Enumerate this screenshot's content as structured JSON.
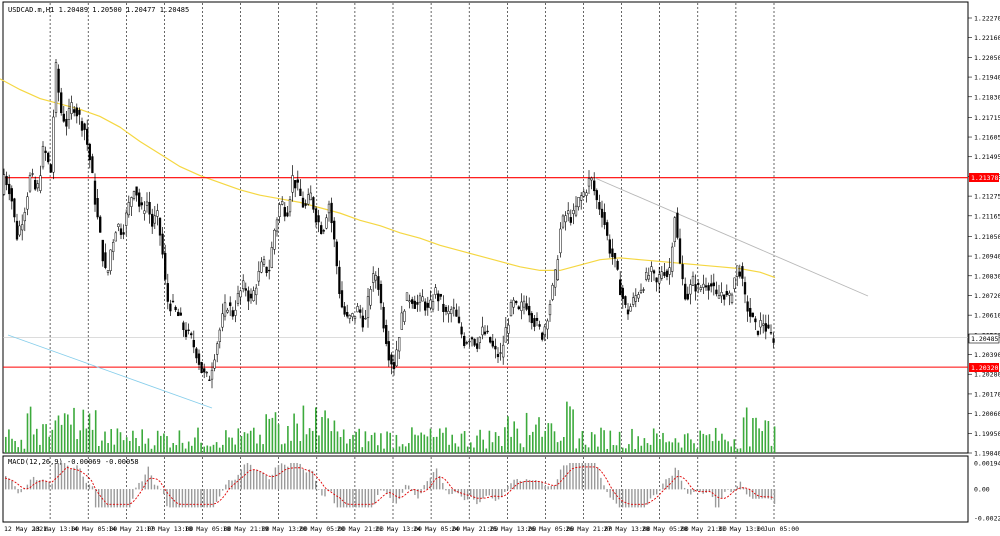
{
  "header": {
    "symbol_info": "USDCAD.m,H1  1.20489 1.20500 1.20477 1.20485"
  },
  "macd_header": "MACD(12,26,9) -0.00069 -0.00058",
  "colors": {
    "background": "#ffffff",
    "candle": "#000000",
    "grid": "#000000",
    "ma": "#f5d742",
    "resistance": "#ff0000",
    "support": "#ff0000",
    "trend_blue": "#87ceeb",
    "trend_gray": "#b8b8b8",
    "volume": "#3caa3c",
    "macd_hist": "#9a9a9a",
    "macd_signal": "#e00000",
    "price_box": "#ff0000"
  },
  "chart_data": {
    "type": "candlestick",
    "instrument": "USDCAD.m",
    "timeframe": "H1",
    "ohlc_current": {
      "open": 1.20489,
      "high": 1.205,
      "low": 1.20477,
      "close": 1.20485
    },
    "price_axis": {
      "ylim": [
        1.1984,
        1.2227
      ],
      "ticks": [
        "1.22270",
        "1.22160",
        "1.22050",
        "1.21940",
        "1.21830",
        "1.21715",
        "1.21605",
        "1.21495",
        "1.21385",
        "1.21275",
        "1.21165",
        "1.21050",
        "1.20940",
        "1.20830",
        "1.20720",
        "1.20610",
        "1.20500",
        "1.20390",
        "1.20280",
        "1.20170",
        "1.20060",
        "1.19950",
        "1.19840"
      ]
    },
    "time_axis": {
      "labels": [
        "12 May 2021",
        "13 May 13:00",
        "14 May 05:00",
        "14 May 21:00",
        "17 May 13:00",
        "18 May 05:00",
        "18 May 21:00",
        "19 May 13:00",
        "20 May 05:00",
        "20 May 21:00",
        "21 May 13:00",
        "24 May 05:00",
        "24 May 21:00",
        "25 May 13:00",
        "26 May 05:00",
        "26 May 21:00",
        "27 May 13:00",
        "28 May 05:00",
        "28 May 21:00",
        "31 May 13:00",
        "1 Jun 05:00"
      ]
    },
    "levels": {
      "resistance": {
        "value": 1.21378,
        "label": "1.21378"
      },
      "support": {
        "value": 1.2032,
        "label": "1.20320"
      },
      "current": {
        "value": 1.20485,
        "label": "1.20485"
      }
    },
    "ma_curve": [
      [
        0,
        1.2193
      ],
      [
        20,
        1.2187
      ],
      [
        40,
        1.2182
      ],
      [
        60,
        1.2179
      ],
      [
        80,
        1.2176
      ],
      [
        100,
        1.2172
      ],
      [
        120,
        1.2166
      ],
      [
        140,
        1.2158
      ],
      [
        160,
        1.2151
      ],
      [
        180,
        1.2144
      ],
      [
        200,
        1.2139
      ],
      [
        220,
        1.2135
      ],
      [
        240,
        1.2131
      ],
      [
        260,
        1.2128
      ],
      [
        280,
        1.2126
      ],
      [
        300,
        1.2124
      ],
      [
        320,
        1.2121
      ],
      [
        340,
        1.2118
      ],
      [
        360,
        1.2114
      ],
      [
        380,
        1.2111
      ],
      [
        400,
        1.2107
      ],
      [
        420,
        1.2104
      ],
      [
        440,
        1.21
      ],
      [
        460,
        1.2097
      ],
      [
        480,
        1.2094
      ],
      [
        500,
        1.2091
      ],
      [
        520,
        1.2088
      ],
      [
        540,
        1.2086
      ],
      [
        560,
        1.2086
      ],
      [
        580,
        1.2089
      ],
      [
        600,
        1.2092
      ],
      [
        620,
        1.2093
      ],
      [
        640,
        1.2092
      ],
      [
        660,
        1.2091
      ],
      [
        680,
        1.209
      ],
      [
        700,
        1.2089
      ],
      [
        720,
        1.2088
      ],
      [
        740,
        1.2087
      ],
      [
        760,
        1.2085
      ],
      [
        775,
        1.2082
      ]
    ],
    "price_path": [
      [
        0,
        1.2115
      ],
      [
        5,
        1.214
      ],
      [
        12,
        1.213
      ],
      [
        18,
        1.2105
      ],
      [
        25,
        1.2118
      ],
      [
        32,
        1.214
      ],
      [
        38,
        1.2128
      ],
      [
        45,
        1.2155
      ],
      [
        52,
        1.214
      ],
      [
        57,
        1.22
      ],
      [
        62,
        1.2175
      ],
      [
        68,
        1.2168
      ],
      [
        74,
        1.218
      ],
      [
        80,
        1.2172
      ],
      [
        86,
        1.2165
      ],
      [
        92,
        1.2145
      ],
      [
        98,
        1.2118
      ],
      [
        104,
        1.2095
      ],
      [
        108,
        1.208
      ],
      [
        112,
        1.2098
      ],
      [
        118,
        1.2112
      ],
      [
        124,
        1.2108
      ],
      [
        130,
        1.2122
      ],
      [
        136,
        1.2135
      ],
      [
        142,
        1.2118
      ],
      [
        148,
        1.2125
      ],
      [
        154,
        1.211
      ],
      [
        158,
        1.2118
      ],
      [
        163,
        1.21
      ],
      [
        168,
        1.207
      ],
      [
        174,
        1.2065
      ],
      [
        180,
        1.206
      ],
      [
        186,
        1.2052
      ],
      [
        192,
        1.2048
      ],
      [
        198,
        1.204
      ],
      [
        204,
        1.2028
      ],
      [
        210,
        1.2025
      ],
      [
        216,
        1.204
      ],
      [
        222,
        1.2055
      ],
      [
        228,
        1.2068
      ],
      [
        234,
        1.2062
      ],
      [
        240,
        1.2072
      ],
      [
        246,
        1.2078
      ],
      [
        252,
        1.2068
      ],
      [
        258,
        1.208
      ],
      [
        264,
        1.209
      ],
      [
        270,
        1.2085
      ],
      [
        276,
        1.211
      ],
      [
        282,
        1.2125
      ],
      [
        288,
        1.2118
      ],
      [
        294,
        1.2138
      ],
      [
        300,
        1.213
      ],
      [
        306,
        1.212
      ],
      [
        312,
        1.2128
      ],
      [
        318,
        1.2115
      ],
      [
        324,
        1.2108
      ],
      [
        330,
        1.2125
      ],
      [
        336,
        1.21
      ],
      [
        342,
        1.2068
      ],
      [
        348,
        1.2058
      ],
      [
        354,
        1.206
      ],
      [
        360,
        1.2065
      ],
      [
        366,
        1.2055
      ],
      [
        372,
        1.2078
      ],
      [
        378,
        1.2085
      ],
      [
        384,
        1.206
      ],
      [
        390,
        1.204
      ],
      [
        395,
        1.2032
      ],
      [
        400,
        1.205
      ],
      [
        406,
        1.2068
      ],
      [
        412,
        1.2072
      ],
      [
        418,
        1.2066
      ],
      [
        424,
        1.207
      ],
      [
        430,
        1.2062
      ],
      [
        436,
        1.2075
      ],
      [
        442,
        1.2068
      ],
      [
        448,
        1.206
      ],
      [
        454,
        1.2065
      ],
      [
        460,
        1.2055
      ],
      [
        466,
        1.2046
      ],
      [
        472,
        1.205
      ],
      [
        478,
        1.2045
      ],
      [
        484,
        1.2052
      ],
      [
        490,
        1.2048
      ],
      [
        496,
        1.204
      ],
      [
        502,
        1.2038
      ],
      [
        508,
        1.2055
      ],
      [
        514,
        1.2068
      ],
      [
        520,
        1.2062
      ],
      [
        526,
        1.207
      ],
      [
        532,
        1.2062
      ],
      [
        538,
        1.2055
      ],
      [
        544,
        1.205
      ],
      [
        550,
        1.2065
      ],
      [
        556,
        1.208
      ],
      [
        562,
        1.211
      ],
      [
        568,
        1.2118
      ],
      [
        574,
        1.2115
      ],
      [
        580,
        1.2125
      ],
      [
        586,
        1.213
      ],
      [
        592,
        1.2138
      ],
      [
        598,
        1.2125
      ],
      [
        604,
        1.2118
      ],
      [
        610,
        1.21
      ],
      [
        616,
        1.209
      ],
      [
        622,
        1.2075
      ],
      [
        628,
        1.2062
      ],
      [
        634,
        1.2068
      ],
      [
        640,
        1.2075
      ],
      [
        646,
        1.208
      ],
      [
        652,
        1.2085
      ],
      [
        658,
        1.2078
      ],
      [
        664,
        1.2088
      ],
      [
        670,
        1.2082
      ],
      [
        676,
        1.2118
      ],
      [
        682,
        1.2085
      ],
      [
        688,
        1.207
      ],
      [
        694,
        1.208
      ],
      [
        700,
        1.2075
      ],
      [
        706,
        1.208
      ],
      [
        712,
        1.2078
      ],
      [
        718,
        1.207
      ],
      [
        724,
        1.2075
      ],
      [
        730,
        1.2068
      ],
      [
        736,
        1.2082
      ],
      [
        740,
        1.209
      ],
      [
        746,
        1.207
      ],
      [
        752,
        1.206
      ],
      [
        758,
        1.2052
      ],
      [
        764,
        1.2058
      ],
      [
        770,
        1.205
      ],
      [
        775,
        1.20485
      ]
    ],
    "macd_axis": {
      "ticks": [
        "0.001949",
        "0.00",
        "-0.002201"
      ]
    }
  }
}
